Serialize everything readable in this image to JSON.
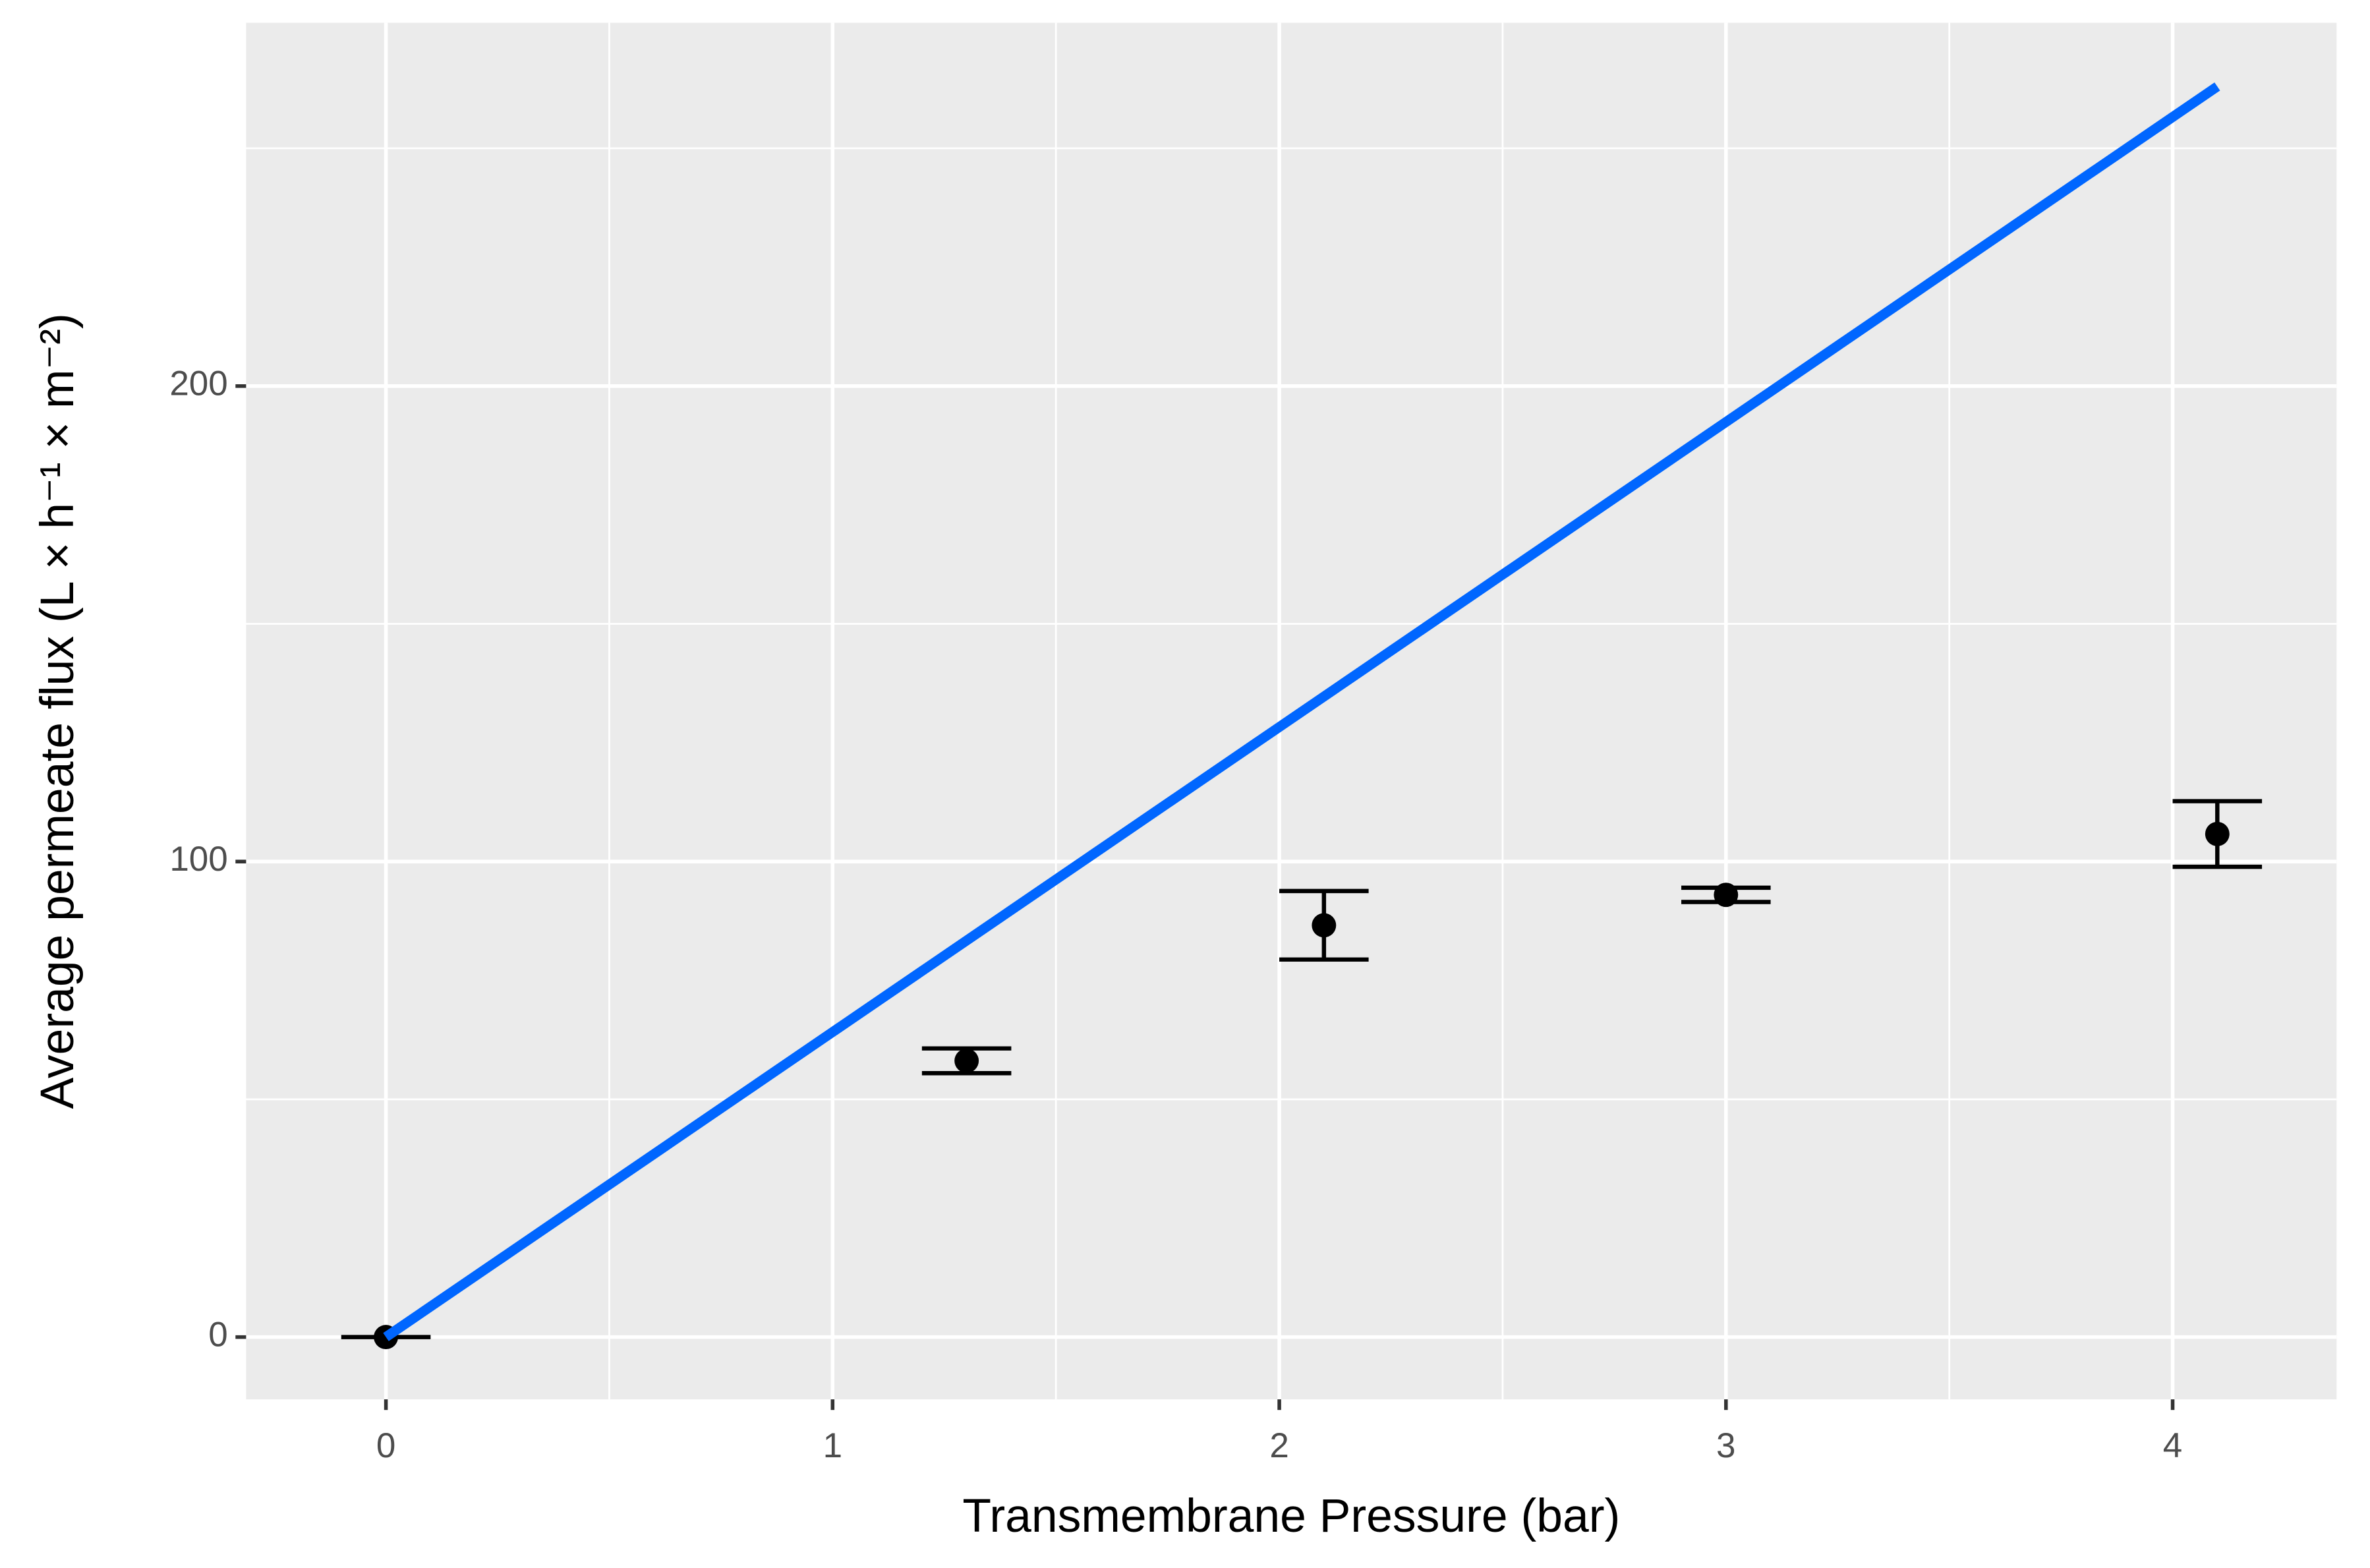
{
  "chart_data": {
    "type": "scatter",
    "x_label": "Transmembrane Pressure (bar)",
    "y_label": "Average permeate flux (L × h⁻¹ × m⁻²)",
    "xlim": [
      -0.313,
      4.367
    ],
    "ylim": [
      -13.1,
      276.4
    ],
    "xticks": [
      0,
      1,
      2,
      3,
      4
    ],
    "yticks": [
      0,
      100,
      200
    ],
    "x_minor_ticks": [
      0.5,
      1.5,
      2.5,
      3.5
    ],
    "y_minor_ticks": [
      50,
      150,
      250
    ],
    "grid": true,
    "points": {
      "x": [
        0,
        1.3,
        2.1,
        3.0,
        4.1
      ],
      "y": [
        0,
        58.1,
        86.6,
        93.0,
        105.8
      ],
      "error": [
        0,
        2.6,
        7.2,
        1.5,
        6.9
      ],
      "color": "#000000"
    },
    "line": {
      "x": [
        0,
        4.1
      ],
      "y": [
        0,
        263
      ],
      "color": "#0066ff"
    }
  }
}
